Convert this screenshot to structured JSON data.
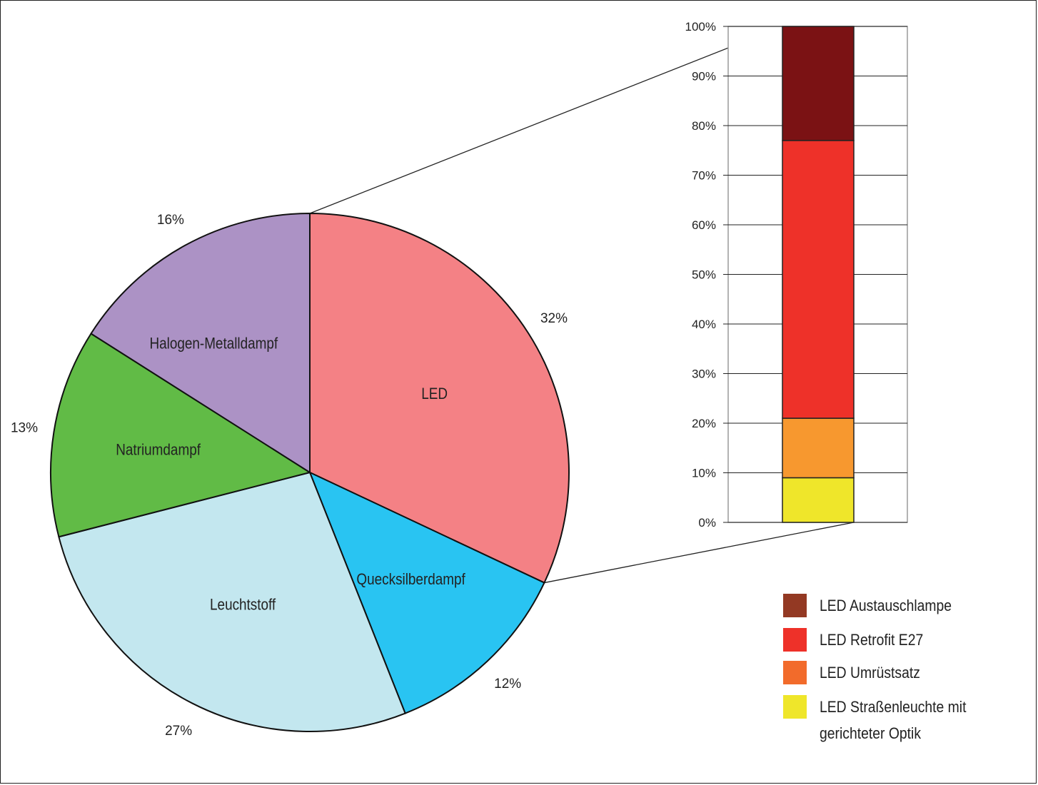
{
  "chart_data": [
    {
      "type": "pie",
      "slices": [
        {
          "name": "LED",
          "value": 32,
          "label": "32%",
          "color": "#f48185"
        },
        {
          "name": "Quecksilberdampf",
          "value": 12,
          "label": "12%",
          "color": "#29c4f2"
        },
        {
          "name": "Leuchtstoff",
          "value": 27,
          "label": "27%",
          "color": "#c3e7ef"
        },
        {
          "name": "Natriumdampf",
          "value": 13,
          "label": "13%",
          "color": "#61bb46"
        },
        {
          "name": "Halogen-Metalldampf",
          "value": 16,
          "label": "16%",
          "color": "#ac92c5"
        }
      ]
    },
    {
      "type": "bar",
      "stacked": true,
      "ylim": [
        0,
        100
      ],
      "yticks": [
        "0%",
        "10%",
        "20%",
        "30%",
        "40%",
        "50%",
        "60%",
        "70%",
        "80%",
        "90%",
        "100%"
      ],
      "series": [
        {
          "name": "LED Straßenleuchte mit gerichteter Optik",
          "value": 9,
          "color": "#efe62a",
          "legend_color": "#efe62a"
        },
        {
          "name": "LED Umrüstsatz",
          "value": 12,
          "color": "#f7982f",
          "legend_color": "#f26b2b"
        },
        {
          "name": "LED Retrofit E27",
          "value": 56,
          "color": "#ee3129",
          "legend_color": "#ee3129"
        },
        {
          "name": "LED Austauschlampe",
          "value": 23,
          "color": "#7b1214",
          "legend_color": "#933923"
        }
      ],
      "legend": {
        "placement": "bottom-right",
        "items": [
          {
            "lines": [
              "LED Austauschlampe"
            ],
            "color": "#933923"
          },
          {
            "lines": [
              "LED Retrofit E27"
            ],
            "color": "#ee3129"
          },
          {
            "lines": [
              "LED Umrüstsatz"
            ],
            "color": "#f26b2b"
          },
          {
            "lines": [
              "LED Straßenleuchte mit",
              "gerichteter Optik"
            ],
            "color": "#efe62a"
          }
        ]
      },
      "grid": true
    }
  ]
}
